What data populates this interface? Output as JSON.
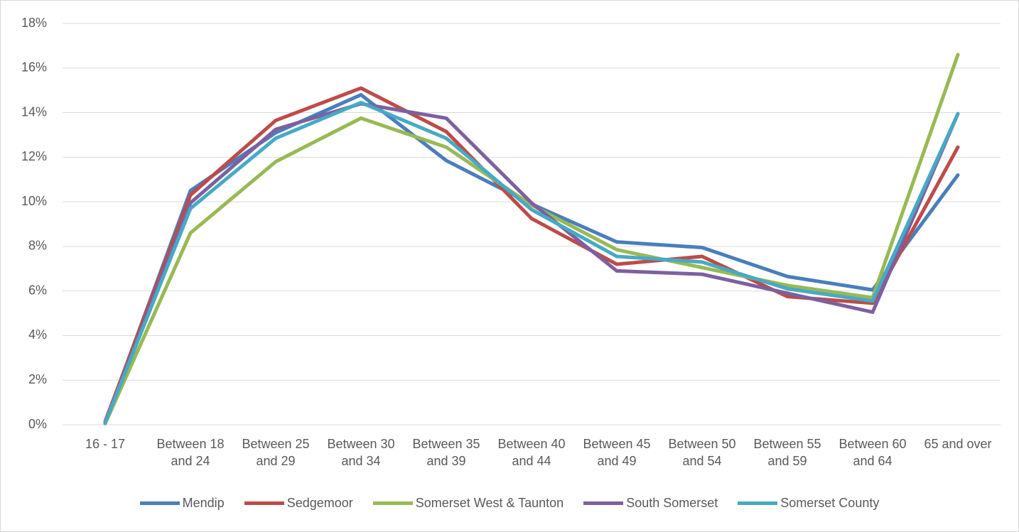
{
  "chart_data": {
    "type": "line",
    "categories": [
      "16 - 17",
      "Between 18 and 24",
      "Between 25 and 29",
      "Between 30 and 34",
      "Between 35 and 39",
      "Between 40 and 44",
      "Between 45 and 49",
      "Between 50 and 54",
      "Between 55 and 59",
      "Between 60 and 64",
      "65 and over"
    ],
    "series": [
      {
        "name": "Mendip",
        "color": "#4a7ebb",
        "values": [
          0.1,
          10.5,
          13.1,
          14.8,
          11.85,
          9.9,
          8.2,
          7.95,
          6.65,
          6.05,
          11.2
        ]
      },
      {
        "name": "Sedgemoor",
        "color": "#be4b48",
        "values": [
          0.15,
          10.3,
          13.65,
          15.1,
          13.15,
          9.25,
          7.2,
          7.55,
          5.75,
          5.45,
          12.45
        ]
      },
      {
        "name": "Somerset West & Taunton",
        "color": "#98b954",
        "values": [
          0.05,
          8.6,
          11.8,
          13.75,
          12.45,
          9.85,
          7.85,
          7.05,
          6.25,
          5.7,
          16.6
        ]
      },
      {
        "name": "South Somerset",
        "color": "#7d60a0",
        "values": [
          0.1,
          9.95,
          13.25,
          14.4,
          13.75,
          9.95,
          6.9,
          6.75,
          5.9,
          5.05,
          13.95
        ]
      },
      {
        "name": "Somerset County",
        "color": "#46aac5",
        "values": [
          0.08,
          9.7,
          12.85,
          14.45,
          12.85,
          9.65,
          7.55,
          7.3,
          6.1,
          5.55,
          13.95
        ]
      }
    ],
    "ylim": [
      0,
      18
    ],
    "yticks": [
      {
        "value": 0,
        "label": "0%"
      },
      {
        "value": 2,
        "label": "2%"
      },
      {
        "value": 4,
        "label": "4%"
      },
      {
        "value": 6,
        "label": "6%"
      },
      {
        "value": 8,
        "label": "8%"
      },
      {
        "value": 10,
        "label": "10%"
      },
      {
        "value": 12,
        "label": "12%"
      },
      {
        "value": 14,
        "label": "14%"
      },
      {
        "value": 16,
        "label": "16%"
      },
      {
        "value": 18,
        "label": "18%"
      }
    ],
    "grid": true,
    "legend": "bottom"
  }
}
